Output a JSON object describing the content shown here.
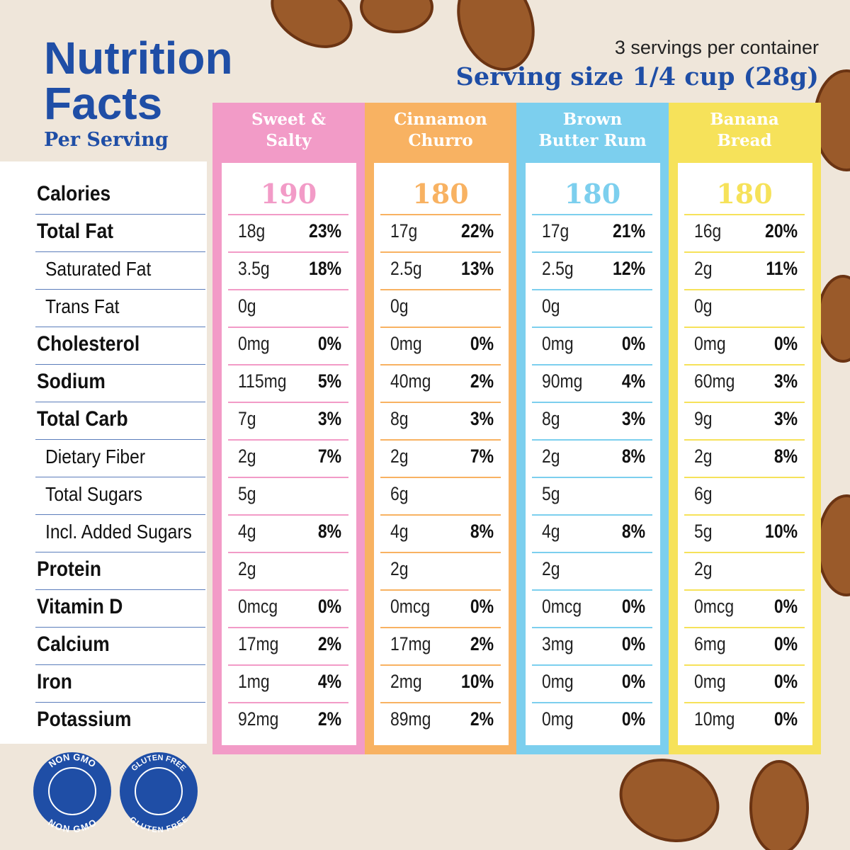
{
  "header": {
    "title_line1": "Nutrition",
    "title_line2": "Facts",
    "subtitle": "Per Serving",
    "servings": "3 servings per container",
    "serving_size": "Serving size 1/4 cup (28g)"
  },
  "rows": [
    {
      "label": "Calories",
      "bold": true
    },
    {
      "label": "Total Fat",
      "bold": true
    },
    {
      "label": "Saturated Fat",
      "bold": false
    },
    {
      "label": "Trans Fat",
      "bold": false
    },
    {
      "label": "Cholesterol",
      "bold": true
    },
    {
      "label": "Sodium",
      "bold": true
    },
    {
      "label": "Total Carb",
      "bold": true
    },
    {
      "label": "Dietary Fiber",
      "bold": false
    },
    {
      "label": "Total Sugars",
      "bold": false
    },
    {
      "label": "Incl. Added Sugars",
      "bold": false
    },
    {
      "label": "Protein",
      "bold": true
    },
    {
      "label": "Vitamin D",
      "bold": true
    },
    {
      "label": "Calcium",
      "bold": true
    },
    {
      "label": "Iron",
      "bold": true
    },
    {
      "label": "Potassium",
      "bold": true
    }
  ],
  "columns": [
    {
      "name_line1": "Sweet &",
      "name_line2": "Salty",
      "color": "#f29bc7",
      "calories": "190",
      "cells": [
        [
          "18g",
          "23%"
        ],
        [
          "3.5g",
          "18%"
        ],
        [
          "0g"
        ],
        [
          "0mg",
          "0%"
        ],
        [
          "115mg",
          "5%"
        ],
        [
          "7g",
          "3%"
        ],
        [
          "2g",
          "7%"
        ],
        [
          "5g"
        ],
        [
          "4g",
          "8%"
        ],
        [
          "2g"
        ],
        [
          "0mcg",
          "0%"
        ],
        [
          "17mg",
          "2%"
        ],
        [
          "1mg",
          "4%"
        ],
        [
          "92mg",
          "2%"
        ]
      ]
    },
    {
      "name_line1": "Cinnamon",
      "name_line2": "Churro",
      "color": "#f8b262",
      "calories": "180",
      "cells": [
        [
          "17g",
          "22%"
        ],
        [
          "2.5g",
          "13%"
        ],
        [
          "0g"
        ],
        [
          "0mg",
          "0%"
        ],
        [
          "40mg",
          "2%"
        ],
        [
          "8g",
          "3%"
        ],
        [
          "2g",
          "7%"
        ],
        [
          "6g"
        ],
        [
          "4g",
          "8%"
        ],
        [
          "2g"
        ],
        [
          "0mcg",
          "0%"
        ],
        [
          "17mg",
          "2%"
        ],
        [
          "2mg",
          "10%"
        ],
        [
          "89mg",
          "2%"
        ]
      ]
    },
    {
      "name_line1": "Brown",
      "name_line2": "Butter Rum",
      "color": "#7ccfee",
      "calories": "180",
      "cells": [
        [
          "17g",
          "21%"
        ],
        [
          "2.5g",
          "12%"
        ],
        [
          "0g"
        ],
        [
          "0mg",
          "0%"
        ],
        [
          "90mg",
          "4%"
        ],
        [
          "8g",
          "3%"
        ],
        [
          "2g",
          "8%"
        ],
        [
          "5g"
        ],
        [
          "4g",
          "8%"
        ],
        [
          "2g"
        ],
        [
          "0mcg",
          "0%"
        ],
        [
          "3mg",
          "0%"
        ],
        [
          "0mg",
          "0%"
        ],
        [
          "0mg",
          "0%"
        ]
      ]
    },
    {
      "name_line1": "Banana",
      "name_line2": "Bread",
      "color": "#f6e25a",
      "calories": "180",
      "cells": [
        [
          "16g",
          "20%"
        ],
        [
          "2g",
          "11%"
        ],
        [
          "0g"
        ],
        [
          "0mg",
          "0%"
        ],
        [
          "60mg",
          "3%"
        ],
        [
          "9g",
          "3%"
        ],
        [
          "2g",
          "8%"
        ],
        [
          "6g"
        ],
        [
          "5g",
          "10%"
        ],
        [
          "2g"
        ],
        [
          "0mcg",
          "0%"
        ],
        [
          "6mg",
          "0%"
        ],
        [
          "0mg",
          "0%"
        ],
        [
          "10mg",
          "0%"
        ]
      ]
    }
  ],
  "badges": [
    {
      "top": "NON GMO",
      "bottom": "NON GMO"
    },
    {
      "top": "GLUTEN FREE",
      "bottom": "GLUTEN FREE"
    }
  ]
}
